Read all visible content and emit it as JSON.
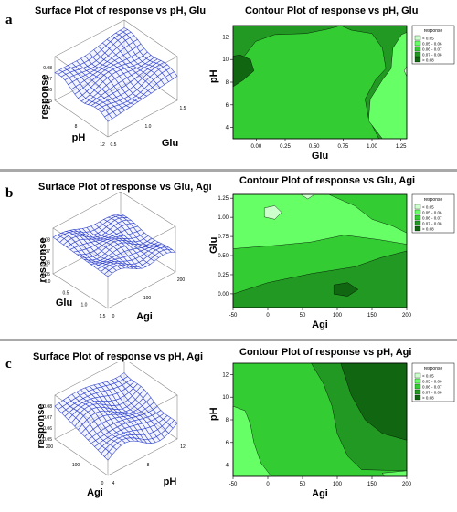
{
  "panels": [
    {
      "letter": "a",
      "surface_title": "Surface Plot of response vs pH, Glu",
      "contour_title": "Contour Plot of response vs pH, Glu"
    },
    {
      "letter": "b",
      "surface_title": "Surface Plot of response vs Glu, Agi",
      "contour_title": "Contour Plot of response vs Glu, Agi"
    },
    {
      "letter": "c",
      "surface_title": "Surface Plot of response vs pH, Agi",
      "contour_title": "Contour Plot of response vs pH, Agi"
    }
  ],
  "colors": {
    "level1": "#ccffcc",
    "level2": "#66ff66",
    "level3": "#33cc33",
    "level4": "#229922",
    "level5": "#116611",
    "mesh": "#3344cc",
    "frame": "#888888"
  },
  "chart_data": [
    {
      "type": "surface",
      "title": "Surface Plot of response vs pH, Glu",
      "zlabel": "response",
      "xlabel": "pH",
      "ylabel": "Glu",
      "z_ticks": [
        "0.05",
        "0.06",
        "0.07",
        "0.08"
      ],
      "x_ticks": [
        "4",
        "8",
        "12"
      ],
      "y_ticks": [
        "0.5",
        "1.0",
        "1.5"
      ],
      "zlim": [
        0.05,
        0.09
      ]
    },
    {
      "type": "contour",
      "title": "Contour Plot of response vs pH, Glu",
      "xlabel": "Glu",
      "ylabel": "pH",
      "x_ticks": [
        "0.00",
        "0.25",
        "0.50",
        "0.75",
        "1.00",
        "1.25"
      ],
      "y_ticks": [
        "4",
        "6",
        "8",
        "10",
        "12"
      ],
      "xlim": [
        -0.2,
        1.3
      ],
      "ylim": [
        3,
        13
      ],
      "legend": {
        "title": "response",
        "position": "top-right",
        "entries": [
          "<  0.05",
          "0.05  -  0.06",
          "0.06  -  0.07",
          "0.07  -  0.08",
          ">  0.08"
        ]
      }
    },
    {
      "type": "surface",
      "title": "Surface Plot of response vs Glu, Agi",
      "zlabel": "response",
      "xlabel": "Glu",
      "ylabel": "Agi",
      "z_ticks": [
        "0.05",
        "0.06",
        "0.07",
        "0.08"
      ],
      "x_ticks": [
        "0.0",
        "0.5",
        "1.0",
        "1.5"
      ],
      "y_ticks": [
        "0",
        "100",
        "200"
      ],
      "zlim": [
        0.05,
        0.09
      ]
    },
    {
      "type": "contour",
      "title": "Contour Plot of response vs Glu, Agi",
      "xlabel": "Agi",
      "ylabel": "Glu",
      "x_ticks": [
        "-50",
        "0",
        "50",
        "100",
        "150",
        "200"
      ],
      "y_ticks": [
        "0.00",
        "0.25",
        "0.50",
        "0.75",
        "1.00",
        "1.25"
      ],
      "xlim": [
        -50,
        200
      ],
      "ylim": [
        -0.18,
        1.3
      ],
      "legend": {
        "title": "response",
        "position": "top-right",
        "entries": [
          "<  0.05",
          "0.05  -  0.06",
          "0.06  -  0.07",
          "0.07  -  0.08",
          ">  0.08"
        ]
      }
    },
    {
      "type": "surface",
      "title": "Surface Plot of response vs pH, Agi",
      "zlabel": "response",
      "xlabel": "Agi",
      "ylabel": "pH",
      "z_ticks": [
        "0.05",
        "0.06",
        "0.07",
        "0.08"
      ],
      "x_ticks": [
        "0",
        "100",
        "200"
      ],
      "y_ticks": [
        "4",
        "8",
        "12"
      ],
      "zlim": [
        0.05,
        0.09
      ]
    },
    {
      "type": "contour",
      "title": "Contour Plot of response vs pH, Agi",
      "xlabel": "Agi",
      "ylabel": "pH",
      "x_ticks": [
        "-50",
        "0",
        "50",
        "100",
        "150",
        "200"
      ],
      "y_ticks": [
        "4",
        "6",
        "8",
        "10",
        "12"
      ],
      "xlim": [
        -50,
        200
      ],
      "ylim": [
        3,
        13
      ],
      "legend": {
        "title": "response",
        "position": "top-right",
        "entries": [
          "<  0.05",
          "0.05  -  0.06",
          "0.06  -  0.07",
          "0.07  -  0.08",
          ">  0.08"
        ]
      }
    }
  ]
}
